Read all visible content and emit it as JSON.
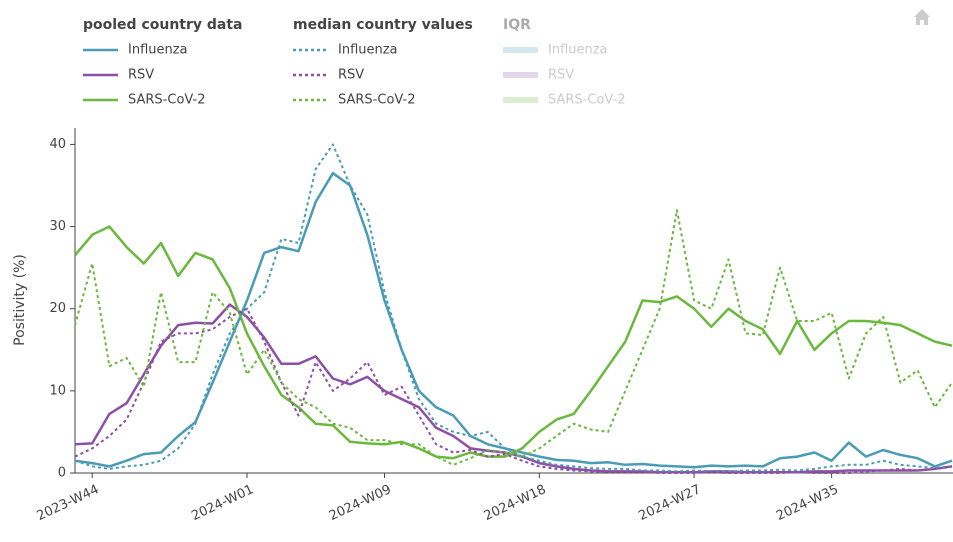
{
  "chart_data": {
    "type": "line",
    "y_label": "Positivity (%)",
    "legend_groups": [
      "pooled country data",
      "median country values",
      "IQR"
    ],
    "categories": [
      null,
      "2023-W44",
      null,
      null,
      null,
      null,
      null,
      null,
      null,
      null,
      "2024-W01",
      null,
      null,
      null,
      null,
      null,
      null,
      null,
      "2024-W09",
      null,
      null,
      null,
      null,
      null,
      null,
      null,
      null,
      "2024-W18",
      null,
      null,
      null,
      null,
      null,
      null,
      null,
      null,
      "2024-W27",
      null,
      null,
      null,
      null,
      null,
      null,
      null,
      "2024-W35",
      null,
      null,
      null,
      null,
      null,
      null,
      null
    ],
    "ylim": [
      0,
      42
    ],
    "yticks": [
      0,
      10,
      20,
      30,
      40
    ],
    "series": [
      {
        "name": "Influenza",
        "group": 0,
        "color": "#4a9bb5",
        "dash": "solid",
        "visible": true,
        "values": [
          1.5,
          1.2,
          0.8,
          1.5,
          2.3,
          2.5,
          4.5,
          6.2,
          11,
          16,
          21,
          26.8,
          27.5,
          27,
          33,
          36.5,
          35,
          29,
          21,
          15,
          10,
          8,
          7,
          4.5,
          3.5,
          3,
          2.5,
          2,
          1.6,
          1.5,
          1.2,
          1.3,
          1,
          1.1,
          0.9,
          0.8,
          0.7,
          0.9,
          0.8,
          0.9,
          0.8,
          1.8,
          2,
          2.5,
          1.5,
          3.7,
          2,
          2.8,
          2.2,
          1.8,
          0.8,
          1.5
        ]
      },
      {
        "name": "RSV",
        "group": 0,
        "color": "#8e4fa6",
        "dash": "solid",
        "visible": true,
        "values": [
          3.5,
          3.6,
          7.2,
          8.5,
          12,
          15.5,
          18,
          18.3,
          18.2,
          20.5,
          19,
          16.5,
          13.3,
          13.3,
          14.2,
          11.5,
          10.8,
          11.7,
          10,
          9,
          8,
          5.5,
          4.5,
          3,
          2.7,
          2.5,
          2,
          1.2,
          0.8,
          0.5,
          0.3,
          0.2,
          0.2,
          0.2,
          0.1,
          0.1,
          0.1,
          0.2,
          0.2,
          0.1,
          0.1,
          0.1,
          0.1,
          0.2,
          0.2,
          0.3,
          0.3,
          0.3,
          0.3,
          0.3,
          0.5,
          0.8
        ]
      },
      {
        "name": "SARS-CoV-2",
        "group": 0,
        "color": "#6ab83c",
        "dash": "solid",
        "visible": true,
        "values": [
          26.5,
          29,
          30,
          27.5,
          25.5,
          28,
          24,
          26.8,
          26,
          22.5,
          17,
          13,
          9.5,
          8,
          6,
          5.8,
          3.8,
          3.6,
          3.5,
          3.8,
          3,
          2,
          1.8,
          2.5,
          2,
          2,
          3,
          5,
          6.5,
          7.2,
          10,
          13,
          16,
          21,
          20.8,
          21.5,
          20,
          17.8,
          20,
          18.5,
          17.5,
          14.5,
          18.5,
          15,
          17,
          18.5,
          18.5,
          18.3,
          18,
          17,
          16,
          15.5
        ]
      },
      {
        "name": "Influenza",
        "group": 1,
        "color": "#4a9bb5",
        "dash": "dotted",
        "visible": true,
        "values": [
          1.5,
          0.8,
          0.5,
          0.8,
          1,
          1.5,
          3,
          6,
          12,
          17,
          20,
          22,
          28.5,
          28,
          37,
          40,
          35,
          31.5,
          22,
          15,
          9,
          6,
          5,
          4.5,
          5,
          3,
          2,
          1.5,
          1,
          0.8,
          0.6,
          0.5,
          0.5,
          0.3,
          0.3,
          0.2,
          0.3,
          0.2,
          0.2,
          0.3,
          0.3,
          0.4,
          0.3,
          0.5,
          0.8,
          1,
          1,
          1.5,
          1,
          0.8,
          0.6,
          0.8
        ]
      },
      {
        "name": "RSV",
        "group": 1,
        "color": "#8e4fa6",
        "dash": "dotted",
        "visible": true,
        "values": [
          2,
          3,
          4.5,
          6.5,
          11,
          16,
          17,
          17,
          17.5,
          19,
          20,
          16,
          11,
          7,
          13.5,
          10,
          11.5,
          13.5,
          9.5,
          10.5,
          7,
          3.5,
          2.5,
          2.8,
          2,
          2.3,
          1.5,
          0.8,
          0.5,
          0.3,
          0.2,
          0.1,
          0.1,
          0.1,
          0,
          0,
          0,
          0.1,
          0,
          0,
          0,
          0,
          0.1,
          0,
          0,
          0,
          0.2,
          0.3,
          0.5,
          0.3,
          0.5,
          0.8
        ]
      },
      {
        "name": "SARS-CoV-2",
        "group": 1,
        "color": "#6ab83c",
        "dash": "dotted",
        "visible": true,
        "values": [
          18,
          25.5,
          13,
          14,
          10.5,
          22,
          13.5,
          13.5,
          22,
          19.5,
          12,
          15,
          11,
          9,
          8,
          6,
          5.5,
          4,
          4,
          3.5,
          3.5,
          2,
          1,
          1.8,
          2.8,
          2.5,
          2,
          3,
          4.5,
          6,
          5.3,
          5,
          10,
          15,
          20,
          32,
          21,
          20,
          26,
          17,
          16.8,
          25,
          18.5,
          18.5,
          19.5,
          11.5,
          17,
          19,
          11,
          12.5,
          8,
          11
        ]
      },
      {
        "name": "Influenza",
        "group": 2,
        "color": "#c9e2ea",
        "dash": "band",
        "visible": false
      },
      {
        "name": "RSV",
        "group": 2,
        "color": "#ddcbe5",
        "dash": "band",
        "visible": false
      },
      {
        "name": "SARS-CoV-2",
        "group": 2,
        "color": "#d4ebc6",
        "dash": "band",
        "visible": false
      }
    ]
  }
}
